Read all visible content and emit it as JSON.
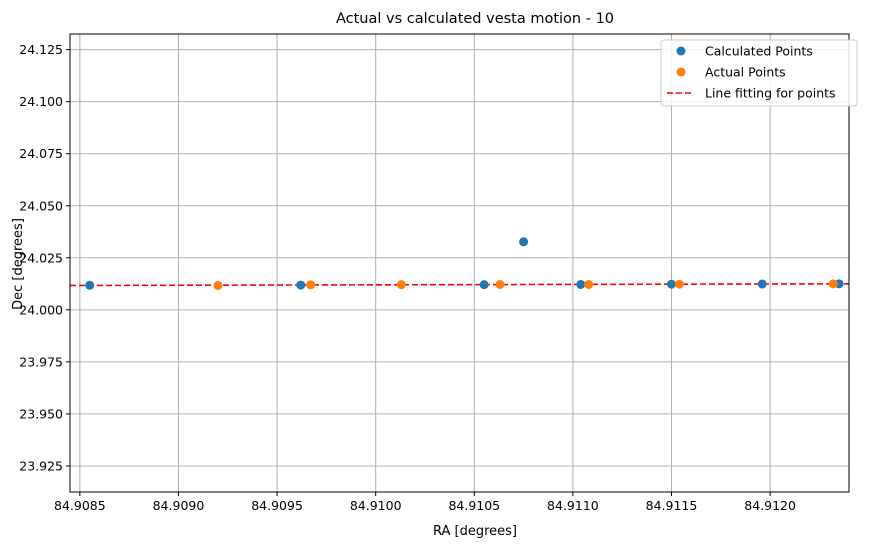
{
  "chart_data": {
    "type": "scatter",
    "title": "Actual vs calculated vesta motion - 10",
    "xlabel": "RA [degrees]",
    "ylabel": "Dec [degrees]",
    "xlim": [
      84.90845,
      84.9124
    ],
    "ylim": [
      23.9125,
      24.1325
    ],
    "xticks": [
      84.9085,
      84.909,
      84.9095,
      84.91,
      84.9105,
      84.911,
      84.9115,
      84.912
    ],
    "xtick_labels": [
      "84.9085",
      "84.9090",
      "84.9095",
      "84.9100",
      "84.9105",
      "84.9110",
      "84.9115",
      "84.9120"
    ],
    "yticks": [
      23.925,
      23.95,
      23.975,
      24.0,
      24.025,
      24.05,
      24.075,
      24.1,
      24.125
    ],
    "ytick_labels": [
      "23.925",
      "23.950",
      "23.975",
      "24.000",
      "24.025",
      "24.050",
      "24.075",
      "24.100",
      "24.125"
    ],
    "grid": true,
    "legend_position": "top-right",
    "series": [
      {
        "name": "Calculated Points",
        "kind": "scatter",
        "color": "#1f77b4",
        "points": [
          [
            84.90855,
            24.0118
          ],
          [
            84.90962,
            24.0119
          ],
          [
            84.91055,
            24.0121
          ],
          [
            84.91075,
            24.0327
          ],
          [
            84.91104,
            24.0122
          ],
          [
            84.9115,
            24.0123
          ],
          [
            84.91196,
            24.0124
          ],
          [
            84.91235,
            24.0125
          ]
        ]
      },
      {
        "name": "Actual Points",
        "kind": "scatter",
        "color": "#ff7f0e",
        "points": [
          [
            84.9092,
            24.0117
          ],
          [
            84.90967,
            24.012
          ],
          [
            84.91013,
            24.0121
          ],
          [
            84.91063,
            24.0122
          ],
          [
            84.91108,
            24.0122
          ],
          [
            84.91154,
            24.0123
          ],
          [
            84.91232,
            24.0125
          ]
        ]
      },
      {
        "name": "Line fitting for points",
        "kind": "line",
        "style": "dashed",
        "color": "#ff0000",
        "points": [
          [
            84.90845,
            24.0117
          ],
          [
            84.9124,
            24.0125
          ]
        ]
      }
    ]
  }
}
